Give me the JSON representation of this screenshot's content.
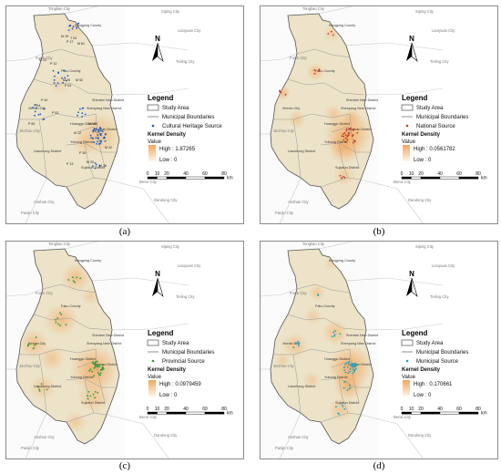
{
  "colors": {
    "study_area_fill": "#ece3c8",
    "boundary_stroke": "#9a9a9a",
    "density_high": "#f4a55a",
    "density_low": "#fff6ec",
    "point_a": "#1f5fbf",
    "point_b": "#c0392b",
    "point_c": "#2e9e3a",
    "point_d": "#19a8c9"
  },
  "surrounding_cities": [
    "Tongliao City",
    "Siping City",
    "Liaoyuan City",
    "Tieling City",
    "Fuxin City",
    "Jinzhou City",
    "Anshan City",
    "Benxi City",
    "Panjin City",
    "Dandong City"
  ],
  "districts": [
    "Kangping County",
    "Faku County",
    "Xinmin City",
    "Shenyang New District",
    "Huanggu District",
    "Hunnan District",
    "Liaozhong District",
    "Sujiatun District",
    "Shenbei New District",
    "Yuhong District"
  ],
  "legend_common": {
    "title": "Legend",
    "study_area": "Study Area",
    "municipal": "Municipal Boundaries",
    "kernel": "Kernel Density",
    "value": "Value",
    "low": "Low : 0"
  },
  "scalebar": {
    "ticks": [
      "0",
      "10",
      "20",
      "40",
      "60",
      "80"
    ],
    "unit": "km"
  },
  "north": "N",
  "panels": [
    {
      "id": "a",
      "caption": "(a)",
      "source_label": "Cultural Heritage Source",
      "high_label": "High : 1.87265",
      "point_color_key": "point_a"
    },
    {
      "id": "b",
      "caption": "(b)",
      "source_label": "National Source",
      "high_label": "High : 0.0561782",
      "point_color_key": "point_b"
    },
    {
      "id": "c",
      "caption": "(c)",
      "source_label": "Provincial Source",
      "high_label": "High : 0.0979459",
      "point_color_key": "point_c"
    },
    {
      "id": "d",
      "caption": "(d)",
      "source_label": "Municipal Source",
      "high_label": "High : 0.170661",
      "point_color_key": "point_d"
    }
  ]
}
